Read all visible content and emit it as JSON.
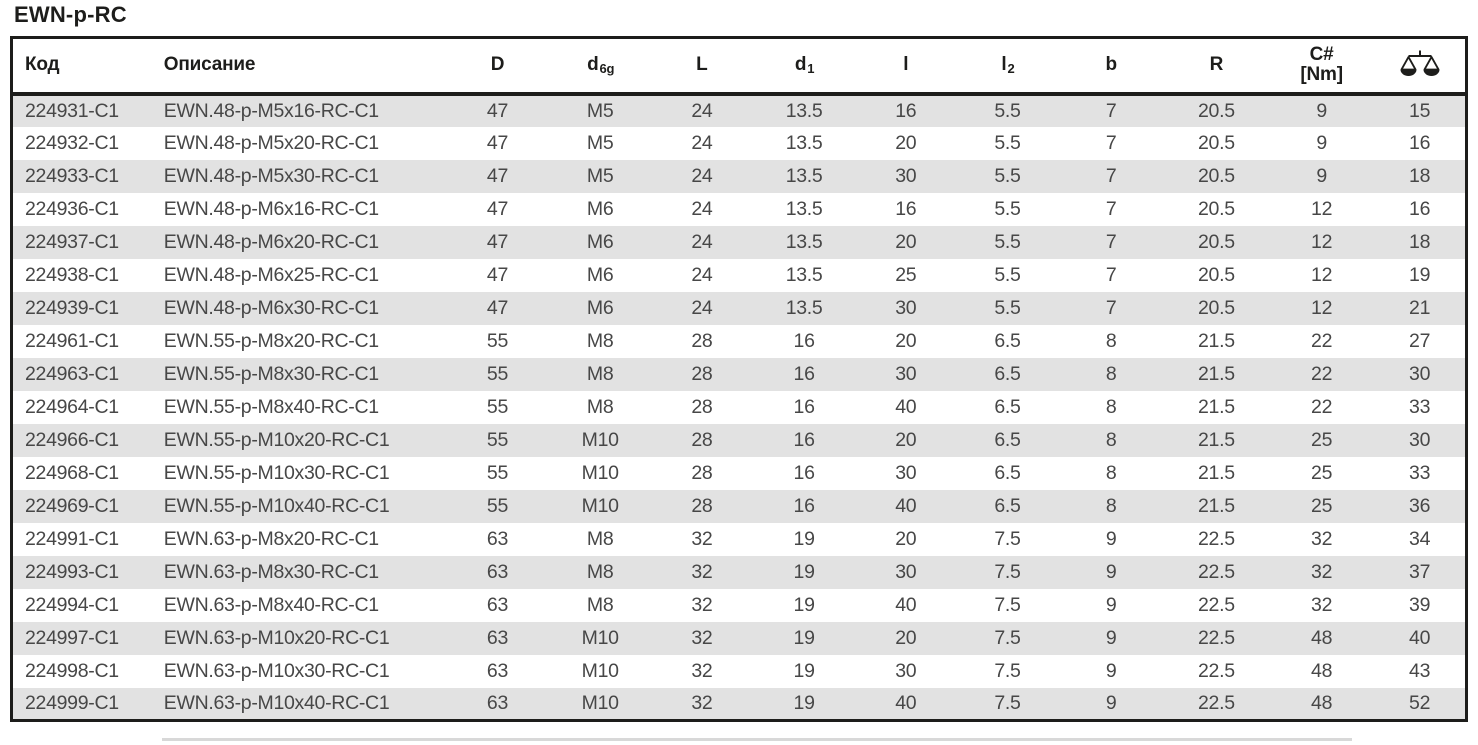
{
  "title": "EWN-p-RC",
  "colors": {
    "border": "#1d1d1b",
    "row_stripe": "#e2e2e2",
    "body_text": "#474747",
    "header_text": "#1d1d1b"
  },
  "table": {
    "columns": [
      {
        "key": "code",
        "label": "Код",
        "sub": "",
        "label2": "",
        "align": "left"
      },
      {
        "key": "description",
        "label": "Описание",
        "sub": "",
        "label2": "",
        "align": "left"
      },
      {
        "key": "D",
        "label": "D",
        "sub": "",
        "label2": "",
        "align": "center"
      },
      {
        "key": "d6g",
        "label": "d",
        "sub": "6g",
        "label2": "",
        "align": "center"
      },
      {
        "key": "L",
        "label": "L",
        "sub": "",
        "label2": "",
        "align": "center"
      },
      {
        "key": "d1",
        "label": "d",
        "sub": "1",
        "label2": "",
        "align": "center"
      },
      {
        "key": "l",
        "label": "l",
        "sub": "",
        "label2": "",
        "align": "center"
      },
      {
        "key": "l2",
        "label": "l",
        "sub": "2",
        "label2": "",
        "align": "center"
      },
      {
        "key": "b",
        "label": "b",
        "sub": "",
        "label2": "",
        "align": "center"
      },
      {
        "key": "R",
        "label": "R",
        "sub": "",
        "label2": "",
        "align": "center"
      },
      {
        "key": "torque",
        "label": "C#",
        "sub": "",
        "label2": "[Nm]",
        "align": "center"
      },
      {
        "key": "weight",
        "label": "",
        "sub": "",
        "label2": "",
        "icon": "scale-icon",
        "align": "center"
      }
    ],
    "rows": [
      [
        "224931-C1",
        "EWN.48-p-M5x16-RC-C1",
        "47",
        "M5",
        "24",
        "13.5",
        "16",
        "5.5",
        "7",
        "20.5",
        "9",
        "15"
      ],
      [
        "224932-C1",
        "EWN.48-p-M5x20-RC-C1",
        "47",
        "M5",
        "24",
        "13.5",
        "20",
        "5.5",
        "7",
        "20.5",
        "9",
        "16"
      ],
      [
        "224933-C1",
        "EWN.48-p-M5x30-RC-C1",
        "47",
        "M5",
        "24",
        "13.5",
        "30",
        "5.5",
        "7",
        "20.5",
        "9",
        "18"
      ],
      [
        "224936-C1",
        "EWN.48-p-M6x16-RC-C1",
        "47",
        "M6",
        "24",
        "13.5",
        "16",
        "5.5",
        "7",
        "20.5",
        "12",
        "16"
      ],
      [
        "224937-C1",
        "EWN.48-p-M6x20-RC-C1",
        "47",
        "M6",
        "24",
        "13.5",
        "20",
        "5.5",
        "7",
        "20.5",
        "12",
        "18"
      ],
      [
        "224938-C1",
        "EWN.48-p-M6x25-RC-C1",
        "47",
        "M6",
        "24",
        "13.5",
        "25",
        "5.5",
        "7",
        "20.5",
        "12",
        "19"
      ],
      [
        "224939-C1",
        "EWN.48-p-M6x30-RC-C1",
        "47",
        "M6",
        "24",
        "13.5",
        "30",
        "5.5",
        "7",
        "20.5",
        "12",
        "21"
      ],
      [
        "224961-C1",
        "EWN.55-p-M8x20-RC-C1",
        "55",
        "M8",
        "28",
        "16",
        "20",
        "6.5",
        "8",
        "21.5",
        "22",
        "27"
      ],
      [
        "224963-C1",
        "EWN.55-p-M8x30-RC-C1",
        "55",
        "M8",
        "28",
        "16",
        "30",
        "6.5",
        "8",
        "21.5",
        "22",
        "30"
      ],
      [
        "224964-C1",
        "EWN.55-p-M8x40-RC-C1",
        "55",
        "M8",
        "28",
        "16",
        "40",
        "6.5",
        "8",
        "21.5",
        "22",
        "33"
      ],
      [
        "224966-C1",
        "EWN.55-p-M10x20-RC-C1",
        "55",
        "M10",
        "28",
        "16",
        "20",
        "6.5",
        "8",
        "21.5",
        "25",
        "30"
      ],
      [
        "224968-C1",
        "EWN.55-p-M10x30-RC-C1",
        "55",
        "M10",
        "28",
        "16",
        "30",
        "6.5",
        "8",
        "21.5",
        "25",
        "33"
      ],
      [
        "224969-C1",
        "EWN.55-p-M10x40-RC-C1",
        "55",
        "M10",
        "28",
        "16",
        "40",
        "6.5",
        "8",
        "21.5",
        "25",
        "36"
      ],
      [
        "224991-C1",
        "EWN.63-p-M8x20-RC-C1",
        "63",
        "M8",
        "32",
        "19",
        "20",
        "7.5",
        "9",
        "22.5",
        "32",
        "34"
      ],
      [
        "224993-C1",
        "EWN.63-p-M8x30-RC-C1",
        "63",
        "M8",
        "32",
        "19",
        "30",
        "7.5",
        "9",
        "22.5",
        "32",
        "37"
      ],
      [
        "224994-C1",
        "EWN.63-p-M8x40-RC-C1",
        "63",
        "M8",
        "32",
        "19",
        "40",
        "7.5",
        "9",
        "22.5",
        "32",
        "39"
      ],
      [
        "224997-C1",
        "EWN.63-p-M10x20-RC-C1",
        "63",
        "M10",
        "32",
        "19",
        "20",
        "7.5",
        "9",
        "22.5",
        "48",
        "40"
      ],
      [
        "224998-C1",
        "EWN.63-p-M10x30-RC-C1",
        "63",
        "M10",
        "32",
        "19",
        "30",
        "7.5",
        "9",
        "22.5",
        "48",
        "43"
      ],
      [
        "224999-C1",
        "EWN.63-p-M10x40-RC-C1",
        "63",
        "M10",
        "32",
        "19",
        "40",
        "7.5",
        "9",
        "22.5",
        "48",
        "52"
      ]
    ]
  }
}
